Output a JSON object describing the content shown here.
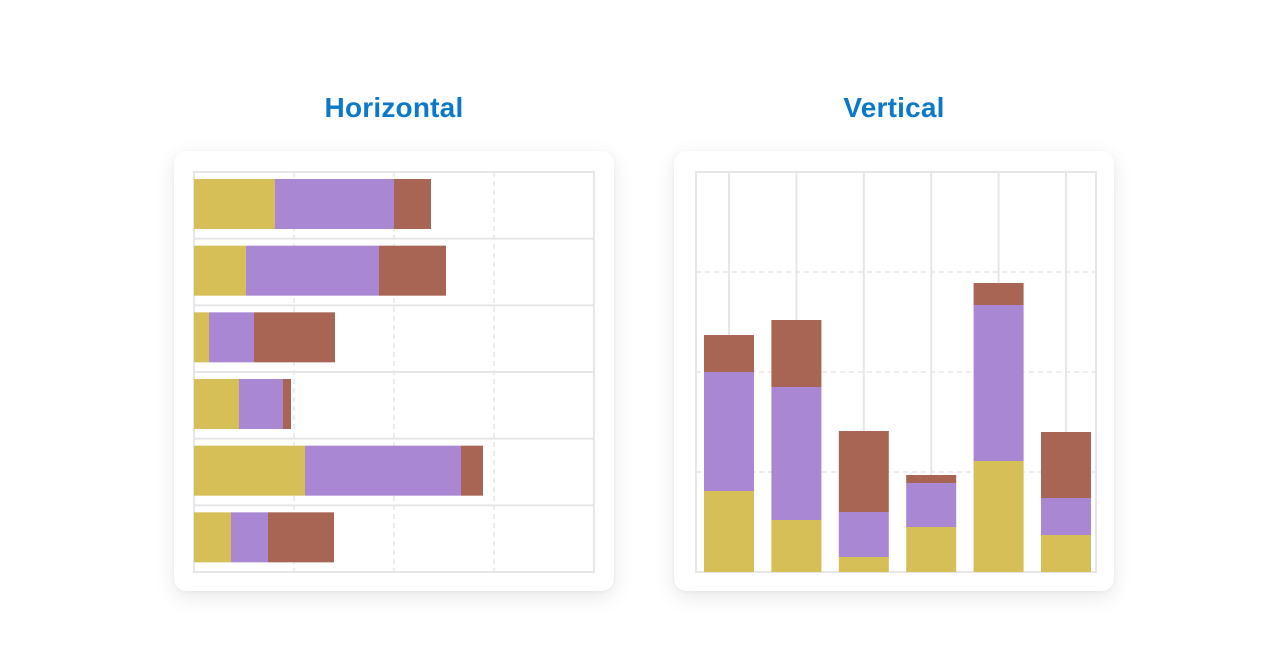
{
  "titles": {
    "horizontal": "Horizontal",
    "vertical": "Vertical"
  },
  "colors": {
    "title": "#0b78c8",
    "series": [
      "#d6bf57",
      "#a987d3",
      "#a96554"
    ],
    "grid": "#e6e6ea"
  },
  "chart_data": [
    {
      "type": "bar",
      "orientation": "horizontal",
      "stacked": true,
      "title": "Horizontal",
      "xlim": [
        0,
        40
      ],
      "grid": true,
      "series": [
        {
          "values": [
            8.1,
            5.2,
            1.5,
            4.5,
            11.1,
            3.7
          ]
        },
        {
          "values": [
            11.9,
            13.3,
            4.5,
            4.4,
            15.6,
            3.7
          ]
        },
        {
          "values": [
            3.7,
            6.7,
            8.1,
            0.8,
            2.2,
            6.6
          ]
        }
      ]
    },
    {
      "type": "bar",
      "orientation": "vertical",
      "stacked": true,
      "title": "Vertical",
      "ylim": [
        0,
        40
      ],
      "grid": true,
      "series": [
        {
          "values": [
            8.1,
            5.2,
            1.5,
            4.5,
            11.1,
            3.7
          ]
        },
        {
          "values": [
            11.9,
            13.3,
            4.5,
            4.4,
            15.6,
            3.7
          ]
        },
        {
          "values": [
            3.7,
            6.7,
            8.1,
            0.8,
            2.2,
            6.6
          ]
        }
      ]
    }
  ]
}
